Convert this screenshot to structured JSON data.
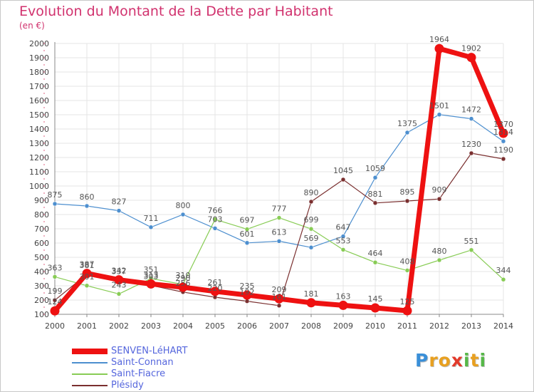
{
  "title": "Evolution du Montant de la Dette par Habitant",
  "subtitle": "(en €)",
  "logo": {
    "letters": [
      "P",
      "r",
      "o",
      "x",
      "i",
      "t",
      "i"
    ],
    "colors": [
      "#3a8fd8",
      "#e8a020",
      "#e8a020",
      "#e23a2a",
      "#56b848",
      "#e8a020",
      "#56b848"
    ]
  },
  "chart_data": {
    "type": "line",
    "x": [
      2000,
      2001,
      2002,
      2003,
      2004,
      2005,
      2006,
      2007,
      2008,
      2009,
      2010,
      2011,
      2012,
      2013,
      2014
    ],
    "ylim": [
      100,
      2000
    ],
    "yticks": [
      100,
      200,
      300,
      400,
      500,
      600,
      700,
      800,
      900,
      1000,
      1100,
      1200,
      1300,
      1400,
      1500,
      1600,
      1700,
      1800,
      1900,
      2000
    ],
    "grid": true,
    "legend_position": "bottom-left",
    "series": [
      {
        "name": "SENVEN-LéHART",
        "color": "#ee1111",
        "width": 7,
        "values": [
          124,
          387,
          342,
          313,
          290,
          261,
          235,
          209,
          181,
          163,
          145,
          125,
          1964,
          1902,
          1370
        ]
      },
      {
        "name": "Saint-Connan",
        "color": "#4d8fcf",
        "width": 1.2,
        "values": [
          875,
          860,
          827,
          711,
          800,
          703,
          601,
          613,
          569,
          647,
          1059,
          1375,
          1501,
          1472,
          1314
        ]
      },
      {
        "name": "Saint-Fiacre",
        "color": "#88cc55",
        "width": 1.2,
        "values": [
          363,
          301,
          243,
          351,
          310,
          766,
          697,
          777,
          699,
          553,
          464,
          408,
          480,
          551,
          344
        ]
      },
      {
        "name": "Plésidy",
        "color": "#7a2f2f",
        "width": 1.2,
        "values": [
          199,
          381,
          337,
          303,
          256,
          220,
          192,
          161,
          890,
          1045,
          881,
          895,
          909,
          1230,
          1190
        ]
      }
    ]
  }
}
